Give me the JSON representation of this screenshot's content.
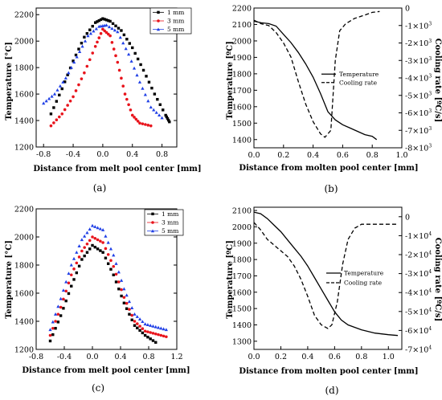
{
  "chart_data": [
    {
      "panel": "a",
      "caption": "(a)",
      "type": "scatter",
      "xlabel": "Distance from melt pool center [mm]",
      "ylabel": "Temperature [°C]",
      "xlim": [
        -0.9,
        1.0
      ],
      "ylim": [
        1200,
        2250
      ],
      "xticks": [
        -0.8,
        -0.4,
        0.0,
        0.4,
        0.8
      ],
      "xtick_labels": [
        "-0.8",
        "-0.4",
        "0.0",
        "0.4",
        "0.8"
      ],
      "yticks": [
        1200,
        1400,
        1600,
        1800,
        2000,
        2200
      ],
      "ytick_labels": [
        "1200",
        "1400",
        "1600",
        "1800",
        "2000",
        "2200"
      ],
      "legend_position": "top-right",
      "series": [
        {
          "name": "1 mm",
          "marker": "square",
          "color": "#000000",
          "x": [
            -0.7,
            -0.55,
            -0.4,
            -0.25,
            -0.1,
            0.0,
            0.1,
            0.25,
            0.4,
            0.55,
            0.7,
            0.85,
            0.9
          ],
          "y": [
            1450,
            1640,
            1850,
            2030,
            2140,
            2170,
            2150,
            2080,
            1950,
            1780,
            1600,
            1440,
            1390
          ]
        },
        {
          "name": "3 mm",
          "marker": "circle",
          "color": "#e8141c",
          "x": [
            -0.7,
            -0.55,
            -0.4,
            -0.25,
            -0.1,
            0.0,
            0.1,
            0.2,
            0.3,
            0.4,
            0.5,
            0.65
          ],
          "y": [
            1360,
            1450,
            1580,
            1760,
            1960,
            2090,
            2040,
            1840,
            1600,
            1440,
            1380,
            1360
          ]
        },
        {
          "name": "5 mm",
          "marker": "triangle",
          "color": "#1f3fe6",
          "x": [
            -0.8,
            -0.65,
            -0.5,
            -0.35,
            -0.2,
            -0.05,
            0.05,
            0.2,
            0.35,
            0.5,
            0.65,
            0.8
          ],
          "y": [
            1530,
            1600,
            1720,
            1880,
            2040,
            2110,
            2120,
            2070,
            1900,
            1690,
            1500,
            1420
          ]
        }
      ]
    },
    {
      "panel": "b",
      "caption": "(b)",
      "type": "line",
      "xlabel": "Distance from molten pool center [mm]",
      "ylabel": "Temperature [ºC]",
      "ylabel_right": "Cooling rate [ºC/s]",
      "xlim": [
        0.0,
        1.0
      ],
      "ylim": [
        1350,
        2200
      ],
      "ylim_right": [
        -8000,
        0
      ],
      "xticks": [
        0.0,
        0.2,
        0.4,
        0.6,
        0.8,
        1.0
      ],
      "xtick_labels": [
        "0.0",
        "0.2",
        "0.4",
        "0.6",
        "0.8",
        "1.0"
      ],
      "yticks": [
        1400,
        1500,
        1600,
        1700,
        1800,
        1900,
        2000,
        2100,
        2200
      ],
      "ytick_labels": [
        "1400",
        "1500",
        "1600",
        "1700",
        "1800",
        "1900",
        "2000",
        "2100",
        "2200"
      ],
      "yticks_right": [
        0,
        -1000,
        -2000,
        -3000,
        -4000,
        -5000,
        -6000,
        -7000,
        -8000
      ],
      "ytick_right_labels": [
        {
          "base": "0",
          "exp": ""
        },
        {
          "base": "-1×10",
          "exp": "3"
        },
        {
          "base": "-2×10",
          "exp": "3"
        },
        {
          "base": "-3×10",
          "exp": "3"
        },
        {
          "base": "-4×10",
          "exp": "3"
        },
        {
          "base": "-5×10",
          "exp": "3"
        },
        {
          "base": "-6×10",
          "exp": "3"
        },
        {
          "base": "-7×10",
          "exp": "3"
        },
        {
          "base": "-8×10",
          "exp": "3"
        }
      ],
      "legend_position": "right-center",
      "series": [
        {
          "name": "Temperature",
          "axis": "left",
          "style": "solid",
          "x": [
            0.0,
            0.05,
            0.1,
            0.15,
            0.2,
            0.25,
            0.3,
            0.35,
            0.4,
            0.45,
            0.5,
            0.55,
            0.6,
            0.65,
            0.7,
            0.75,
            0.8,
            0.83
          ],
          "y": [
            2120,
            2110,
            2105,
            2090,
            2040,
            1990,
            1930,
            1860,
            1780,
            1680,
            1570,
            1520,
            1490,
            1470,
            1450,
            1430,
            1420,
            1400
          ]
        },
        {
          "name": "Cooling rate",
          "axis": "right",
          "style": "dashed",
          "x": [
            0.0,
            0.05,
            0.1,
            0.15,
            0.2,
            0.25,
            0.3,
            0.35,
            0.4,
            0.45,
            0.48,
            0.52,
            0.55,
            0.58,
            0.62,
            0.68,
            0.75,
            0.8,
            0.85
          ],
          "y": [
            -700,
            -900,
            -1000,
            -1400,
            -2000,
            -2800,
            -4200,
            -5500,
            -6500,
            -7200,
            -7400,
            -7000,
            -3000,
            -1300,
            -900,
            -600,
            -400,
            -250,
            -200
          ]
        }
      ]
    },
    {
      "panel": "c",
      "caption": "(c)",
      "type": "scatter",
      "xlabel": "Distance from melt pool center [mm]",
      "ylabel": "Temperature [°C]",
      "xlim": [
        -0.8,
        1.2
      ],
      "ylim": [
        1200,
        2200
      ],
      "xticks": [
        -0.8,
        -0.4,
        0.0,
        0.4,
        0.8,
        1.2
      ],
      "xtick_labels": [
        "-0.8",
        "-0.4",
        "0.0",
        "0.4",
        "0.8",
        "1.2"
      ],
      "yticks": [
        1200,
        1400,
        1600,
        1800,
        2000,
        2200
      ],
      "ytick_labels": [
        "1200",
        "1400",
        "1600",
        "1800",
        "2000",
        "2200"
      ],
      "legend_position": "top-right",
      "series": [
        {
          "name": "1 mm",
          "marker": "square",
          "color": "#000000",
          "x": [
            -0.6,
            -0.45,
            -0.3,
            -0.15,
            0.0,
            0.15,
            0.3,
            0.45,
            0.6,
            0.75,
            0.9
          ],
          "y": [
            1260,
            1440,
            1650,
            1840,
            1940,
            1890,
            1730,
            1530,
            1370,
            1300,
            1250
          ]
        },
        {
          "name": "3 mm",
          "marker": "circle",
          "color": "#e8141c",
          "x": [
            -0.6,
            -0.45,
            -0.3,
            -0.15,
            0.0,
            0.15,
            0.3,
            0.45,
            0.6,
            0.75,
            0.9,
            1.05
          ],
          "y": [
            1300,
            1500,
            1730,
            1900,
            2000,
            1960,
            1790,
            1570,
            1400,
            1330,
            1310,
            1290
          ]
        },
        {
          "name": "5 mm",
          "marker": "triangle",
          "color": "#1f3fe6",
          "x": [
            -0.6,
            -0.45,
            -0.3,
            -0.15,
            0.0,
            0.15,
            0.3,
            0.45,
            0.6,
            0.75,
            0.9,
            1.05
          ],
          "y": [
            1340,
            1560,
            1800,
            1980,
            2080,
            2050,
            1870,
            1630,
            1450,
            1380,
            1360,
            1340
          ]
        }
      ]
    },
    {
      "panel": "d",
      "caption": "(d)",
      "type": "line",
      "xlabel": "Distance from molten pool center [mm]",
      "ylabel": "Temperature [ºC]",
      "ylabel_right": "Cooling rate [ºC/s]",
      "xlim": [
        0.0,
        1.1
      ],
      "ylim": [
        1250,
        2120
      ],
      "ylim_right": [
        -70000,
        5000
      ],
      "xticks": [
        0.0,
        0.2,
        0.4,
        0.6,
        0.8,
        1.0
      ],
      "xtick_labels": [
        "0.0",
        "0.2",
        "0.4",
        "0.6",
        "0.8",
        "1.0"
      ],
      "yticks": [
        1300,
        1400,
        1500,
        1600,
        1700,
        1800,
        1900,
        2000,
        2100
      ],
      "ytick_labels": [
        "1300",
        "1400",
        "1500",
        "1600",
        "1700",
        "1800",
        "1900",
        "2000",
        "2100"
      ],
      "yticks_right": [
        0,
        -10000,
        -20000,
        -30000,
        -40000,
        -50000,
        -60000,
        -70000
      ],
      "ytick_right_labels": [
        {
          "base": "0",
          "exp": ""
        },
        {
          "base": "-1×10",
          "exp": "4"
        },
        {
          "base": "-2×10",
          "exp": "4"
        },
        {
          "base": "-3×10",
          "exp": "4"
        },
        {
          "base": "-4×10",
          "exp": "4"
        },
        {
          "base": "-5×10",
          "exp": "4"
        },
        {
          "base": "-6×10",
          "exp": "4"
        },
        {
          "base": "-7×10",
          "exp": "4"
        }
      ],
      "legend_position": "right-center",
      "series": [
        {
          "name": "Temperature",
          "axis": "left",
          "style": "solid",
          "x": [
            0.0,
            0.05,
            0.1,
            0.15,
            0.2,
            0.25,
            0.3,
            0.35,
            0.4,
            0.45,
            0.5,
            0.55,
            0.6,
            0.65,
            0.7,
            0.8,
            0.9,
            1.0,
            1.07
          ],
          "y": [
            2090,
            2080,
            2050,
            2010,
            1970,
            1920,
            1870,
            1820,
            1760,
            1690,
            1620,
            1550,
            1480,
            1430,
            1400,
            1370,
            1350,
            1340,
            1335
          ]
        },
        {
          "name": "Cooling rate",
          "axis": "right",
          "style": "dashed",
          "x": [
            0.0,
            0.05,
            0.1,
            0.15,
            0.2,
            0.25,
            0.3,
            0.35,
            0.4,
            0.45,
            0.5,
            0.55,
            0.58,
            0.62,
            0.66,
            0.7,
            0.75,
            0.8,
            0.9,
            1.0,
            1.07
          ],
          "y": [
            -3000,
            -7000,
            -12000,
            -15000,
            -18000,
            -21000,
            -26000,
            -33000,
            -42000,
            -52000,
            -57000,
            -59000,
            -57000,
            -45000,
            -25000,
            -12000,
            -6000,
            -4000,
            -4000,
            -4000,
            -4000
          ]
        }
      ]
    }
  ]
}
